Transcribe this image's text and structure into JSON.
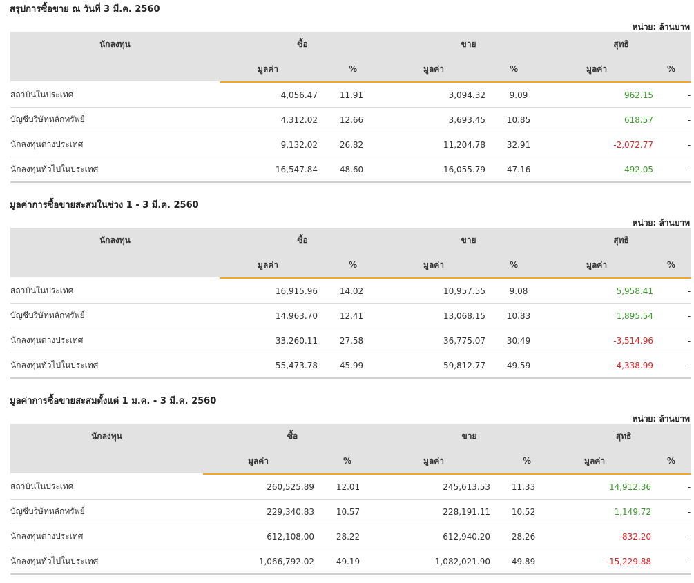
{
  "headers": {
    "investor": "นักลงทุน",
    "buy": "ซื้อ",
    "sell": "ขาย",
    "net": "สุทธิ",
    "value": "มูลค่า",
    "percent": "%"
  },
  "unit_label": "หน่วย: ล้านบาท",
  "sections": [
    {
      "title": "สรุปการซื้อขาย ณ วันที่ 3 มี.ค. 2560",
      "rows": [
        {
          "investor": "สถาบันในประเทศ",
          "buy_value": "4,056.47",
          "buy_pct": "11.91",
          "sell_value": "3,094.32",
          "sell_pct": "9.09",
          "net_value": "962.15",
          "net_pct": "-",
          "net_sign": "pos"
        },
        {
          "investor": "บัญชีบริษัทหลักทรัพย์",
          "buy_value": "4,312.02",
          "buy_pct": "12.66",
          "sell_value": "3,693.45",
          "sell_pct": "10.85",
          "net_value": "618.57",
          "net_pct": "-",
          "net_sign": "pos"
        },
        {
          "investor": "นักลงทุนต่างประเทศ",
          "buy_value": "9,132.02",
          "buy_pct": "26.82",
          "sell_value": "11,204.78",
          "sell_pct": "32.91",
          "net_value": "-2,072.77",
          "net_pct": "-",
          "net_sign": "neg"
        },
        {
          "investor": "นักลงทุนทั่วไปในประเทศ",
          "buy_value": "16,547.84",
          "buy_pct": "48.60",
          "sell_value": "16,055.79",
          "sell_pct": "47.16",
          "net_value": "492.05",
          "net_pct": "-",
          "net_sign": "pos"
        }
      ]
    },
    {
      "title": "มูลค่าการซื้อขายสะสมในช่วง 1 - 3 มี.ค. 2560",
      "rows": [
        {
          "investor": "สถาบันในประเทศ",
          "buy_value": "16,915.96",
          "buy_pct": "14.02",
          "sell_value": "10,957.55",
          "sell_pct": "9.08",
          "net_value": "5,958.41",
          "net_pct": "-",
          "net_sign": "pos"
        },
        {
          "investor": "บัญชีบริษัทหลักทรัพย์",
          "buy_value": "14,963.70",
          "buy_pct": "12.41",
          "sell_value": "13,068.15",
          "sell_pct": "10.83",
          "net_value": "1,895.54",
          "net_pct": "-",
          "net_sign": "pos"
        },
        {
          "investor": "นักลงทุนต่างประเทศ",
          "buy_value": "33,260.11",
          "buy_pct": "27.58",
          "sell_value": "36,775.07",
          "sell_pct": "30.49",
          "net_value": "-3,514.96",
          "net_pct": "-",
          "net_sign": "neg"
        },
        {
          "investor": "นักลงทุนทั่วไปในประเทศ",
          "buy_value": "55,473.78",
          "buy_pct": "45.99",
          "sell_value": "59,812.77",
          "sell_pct": "49.59",
          "net_value": "-4,338.99",
          "net_pct": "-",
          "net_sign": "neg"
        }
      ]
    },
    {
      "title": "มูลค่าการซื้อขายสะสมตั้งแต่ 1 ม.ค. - 3 มี.ค. 2560",
      "rows": [
        {
          "investor": "สถาบันในประเทศ",
          "buy_value": "260,525.89",
          "buy_pct": "12.01",
          "sell_value": "245,613.53",
          "sell_pct": "11.33",
          "net_value": "14,912.36",
          "net_pct": "-",
          "net_sign": "pos"
        },
        {
          "investor": "บัญชีบริษัทหลักทรัพย์",
          "buy_value": "229,340.83",
          "buy_pct": "10.57",
          "sell_value": "228,191.11",
          "sell_pct": "10.52",
          "net_value": "1,149.72",
          "net_pct": "-",
          "net_sign": "pos"
        },
        {
          "investor": "นักลงทุนต่างประเทศ",
          "buy_value": "612,108.00",
          "buy_pct": "28.22",
          "sell_value": "612,940.20",
          "sell_pct": "28.26",
          "net_value": "-832.20",
          "net_pct": "-",
          "net_sign": "neg"
        },
        {
          "investor": "นักลงทุนทั่วไปในประเทศ",
          "buy_value": "1,066,792.02",
          "buy_pct": "49.19",
          "sell_value": "1,082,021.90",
          "sell_pct": "49.89",
          "net_value": "-15,229.88",
          "net_pct": "-",
          "net_sign": "neg"
        }
      ]
    }
  ]
}
